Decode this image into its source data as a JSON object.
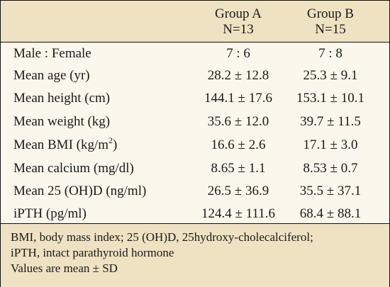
{
  "header": {
    "group_a": {
      "name": "Group A",
      "n": "N=13"
    },
    "group_b": {
      "name": "Group B",
      "n": "N=15"
    }
  },
  "rows": [
    {
      "label": "Male : Female",
      "a": "7 : 6",
      "b": "7 : 8"
    },
    {
      "label": "Mean age (yr)",
      "a": "28.2 ± 12.8",
      "b": "25.3 ± 9.1"
    },
    {
      "label": "Mean height (cm)",
      "a": "144.1 ± 17.6",
      "b": "153.1 ± 10.1"
    },
    {
      "label": "Mean weight (kg)",
      "a": "35.6 ± 12.0",
      "b": "39.7 ± 11.5"
    },
    {
      "label_pre": "Mean BMI (kg/m",
      "label_sup": "2",
      "label_post": ")",
      "a": "16.6 ± 2.6",
      "b": "17.1 ± 3.0"
    },
    {
      "label": "Mean calcium (mg/dl)",
      "a": "8.65 ± 1.1",
      "b": "8.53 ± 0.7"
    },
    {
      "label": "Mean 25 (OH)D (ng/ml)",
      "a": "26.5 ± 36.9",
      "b": "35.5 ± 37.1"
    },
    {
      "label": "iPTH (pg/ml)",
      "a": "124.4 ± 111.6",
      "b": "68.4 ± 88.1"
    }
  ],
  "footer": {
    "line1": "BMI, body mass index; 25 (OH)D, 25hydroxy-cholecalciferol;",
    "line2": "iPTH, intact parathyroid hormone",
    "line3": "Values are mean ± SD"
  },
  "colors": {
    "header_bg": "#efe2c2",
    "body_bg": "#fbf7ec",
    "border": "#111111"
  }
}
